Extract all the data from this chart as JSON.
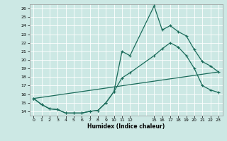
{
  "xlabel": "Humidex (Indice chaleur)",
  "bg_color": "#cce8e4",
  "grid_color": "#ffffff",
  "line_color": "#1a6b5a",
  "xlim": [
    -0.5,
    23.5
  ],
  "ylim": [
    13.5,
    26.5
  ],
  "yticks": [
    14,
    15,
    16,
    17,
    18,
    19,
    20,
    21,
    22,
    23,
    24,
    25,
    26
  ],
  "xticks": [
    0,
    1,
    2,
    3,
    4,
    5,
    6,
    7,
    8,
    9,
    10,
    11,
    12,
    15,
    16,
    17,
    18,
    19,
    20,
    21,
    22,
    23
  ],
  "xtick_labels": [
    "0",
    "1",
    "2",
    "3",
    "4",
    "5",
    "6",
    "7",
    "8",
    "9",
    "10",
    "11",
    "12",
    "15",
    "16",
    "17",
    "18",
    "19",
    "20",
    "21",
    "22",
    "23"
  ],
  "line1_x": [
    0,
    1,
    2,
    3,
    4,
    5,
    6,
    7,
    8,
    9,
    10,
    11,
    12,
    15,
    16,
    17,
    18,
    19,
    20,
    21,
    22,
    23
  ],
  "line1_y": [
    15.5,
    14.8,
    14.3,
    14.2,
    13.8,
    13.8,
    13.8,
    14.0,
    14.1,
    15.0,
    16.3,
    21.0,
    20.5,
    26.3,
    23.5,
    24.0,
    23.3,
    22.8,
    21.2,
    19.8,
    19.3,
    18.6
  ],
  "line2_x": [
    0,
    1,
    2,
    3,
    4,
    5,
    6,
    7,
    8,
    9,
    10,
    11,
    12,
    15,
    16,
    17,
    18,
    19,
    20,
    21,
    22,
    23
  ],
  "line2_y": [
    15.5,
    14.8,
    14.3,
    14.2,
    13.8,
    13.8,
    13.8,
    14.0,
    14.1,
    15.0,
    16.3,
    17.9,
    18.5,
    20.5,
    21.3,
    22.0,
    21.5,
    20.5,
    19.0,
    17.0,
    16.5,
    16.2
  ],
  "line3_x": [
    0,
    23
  ],
  "line3_y": [
    15.5,
    18.6
  ]
}
